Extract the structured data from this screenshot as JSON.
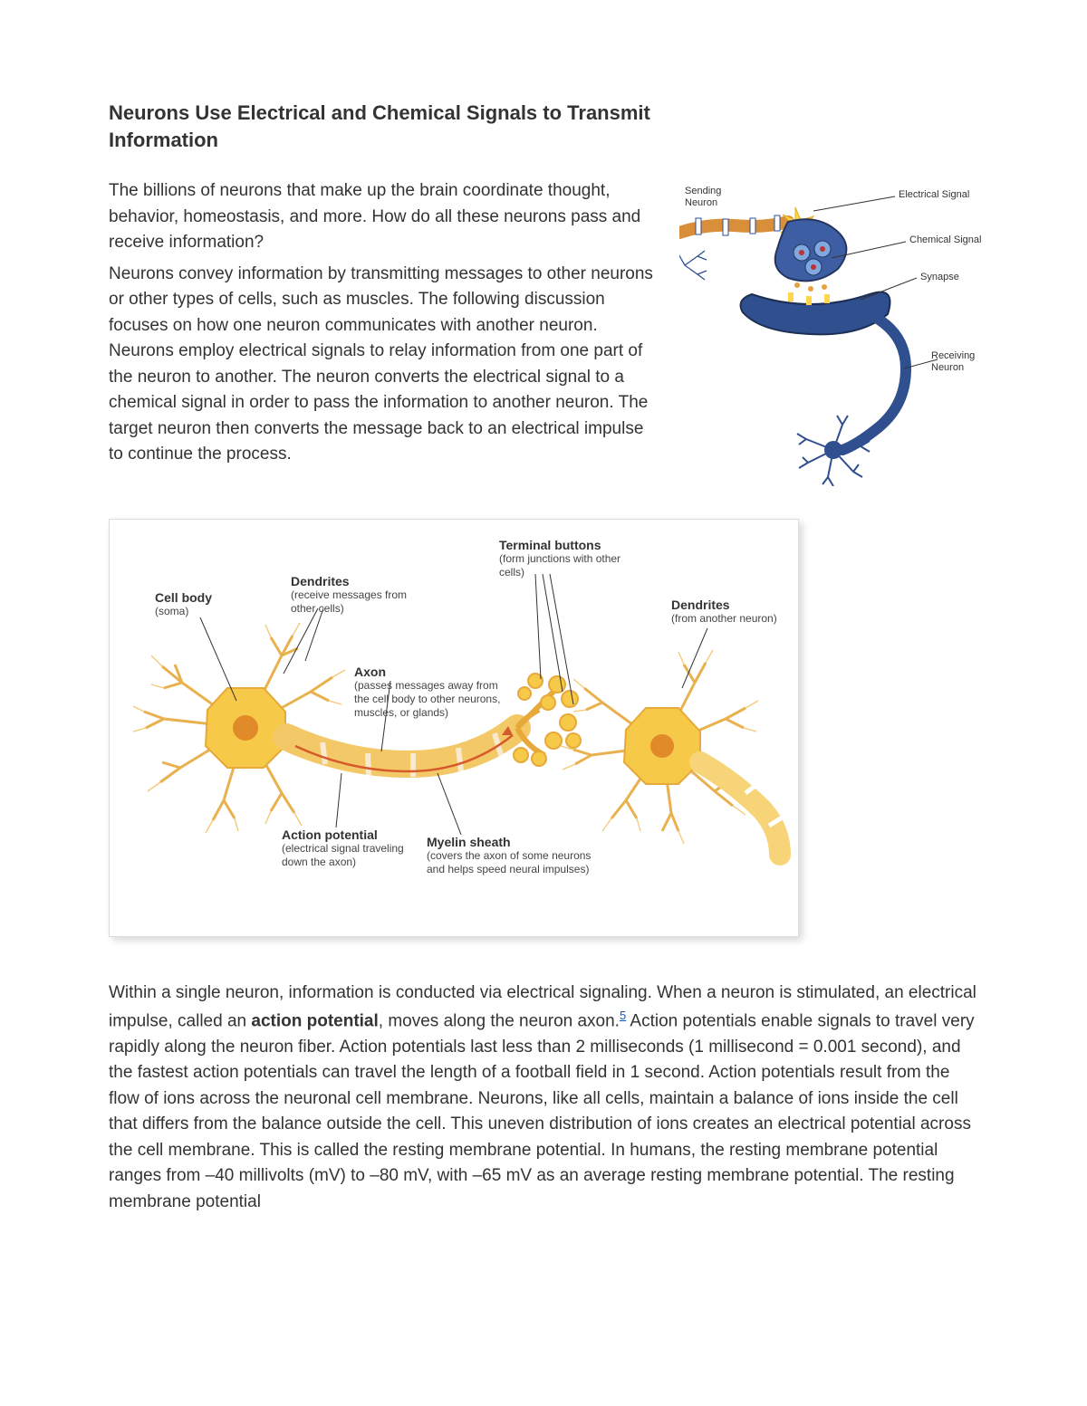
{
  "title": "Neurons Use Electrical and Chemical Signals to Transmit Information",
  "intro": {
    "p1": "The billions of neurons that make up the brain coordinate thought, behavior, homeostasis, and more. How do all these neurons pass and receive information?",
    "p2": "Neurons convey information by transmitting messages to other neurons or other types of cells, such as muscles. The following discussion focuses on how one neuron communicates with another neuron. Neurons employ electrical signals to relay information from one part of the neuron to another. The neuron converts the electrical signal to a chemical signal in order to pass the information to another neuron. The target neuron then converts the message back to an electrical impulse to continue the process."
  },
  "synapse": {
    "sending": "Sending\nNeuron",
    "electrical": "Electrical Signal",
    "chemical": "Chemical Signal",
    "synapse_label": "Synapse",
    "receiving": "Receiving\nNeuron",
    "colors": {
      "neuron_blue": "#2f4f8f",
      "neuron_light": "#7fa7e0",
      "axon_orange": "#d98e3a",
      "spark_yellow": "#ffd54a"
    }
  },
  "diagram": {
    "cell_body": {
      "t": "Cell body",
      "s": "(soma)"
    },
    "dendrites": {
      "t": "Dendrites",
      "s": "(receive messages from other cells)"
    },
    "terminal": {
      "t": "Terminal buttons",
      "s": "(form junctions with other cells)"
    },
    "dendrites_other": {
      "t": "Dendrites",
      "s": "(from another neuron)"
    },
    "axon": {
      "t": "Axon",
      "s": "(passes messages away from the cell body to other neurons, muscles, or glands)"
    },
    "action": {
      "t": "Action potential",
      "s": "(electrical signal traveling down the axon)"
    },
    "myelin": {
      "t": "Myelin sheath",
      "s": "(covers the axon of some neurons and helps speed neural impulses)"
    },
    "colors": {
      "soma_fill": "#f7c948",
      "soma_dark": "#e6a93a",
      "dendrite": "#f0b23e",
      "axon_fill": "#f7d477",
      "myelin": "#f2c14e",
      "arrow": "#d65a2a",
      "border": "#cccccc"
    }
  },
  "body": {
    "pre_bold": "Within a single neuron, information is conducted via electrical signaling. When a neuron is stimulated, an electrical impulse, called an ",
    "bold": "action potential",
    "post_bold_before_fn": ", moves along the neuron axon.",
    "footnote": "5",
    "rest": " Action potentials enable signals to travel very rapidly along the neuron fiber. Action potentials last less than 2 milliseconds (1 millisecond = 0.001 second), and the fastest action potentials can travel the length of a football field in 1 second. Action potentials result from the flow of ions across the neuronal cell membrane. Neurons, like all cells, maintain a balance of ions inside the cell that differs from the balance outside the cell. This uneven distribution of ions creates an electrical potential across the cell membrane. This is called the resting membrane potential. In humans, the resting membrane potential ranges from –40 millivolts (mV) to –80 mV, with –65 mV as an average resting membrane potential. The resting membrane potential"
  }
}
